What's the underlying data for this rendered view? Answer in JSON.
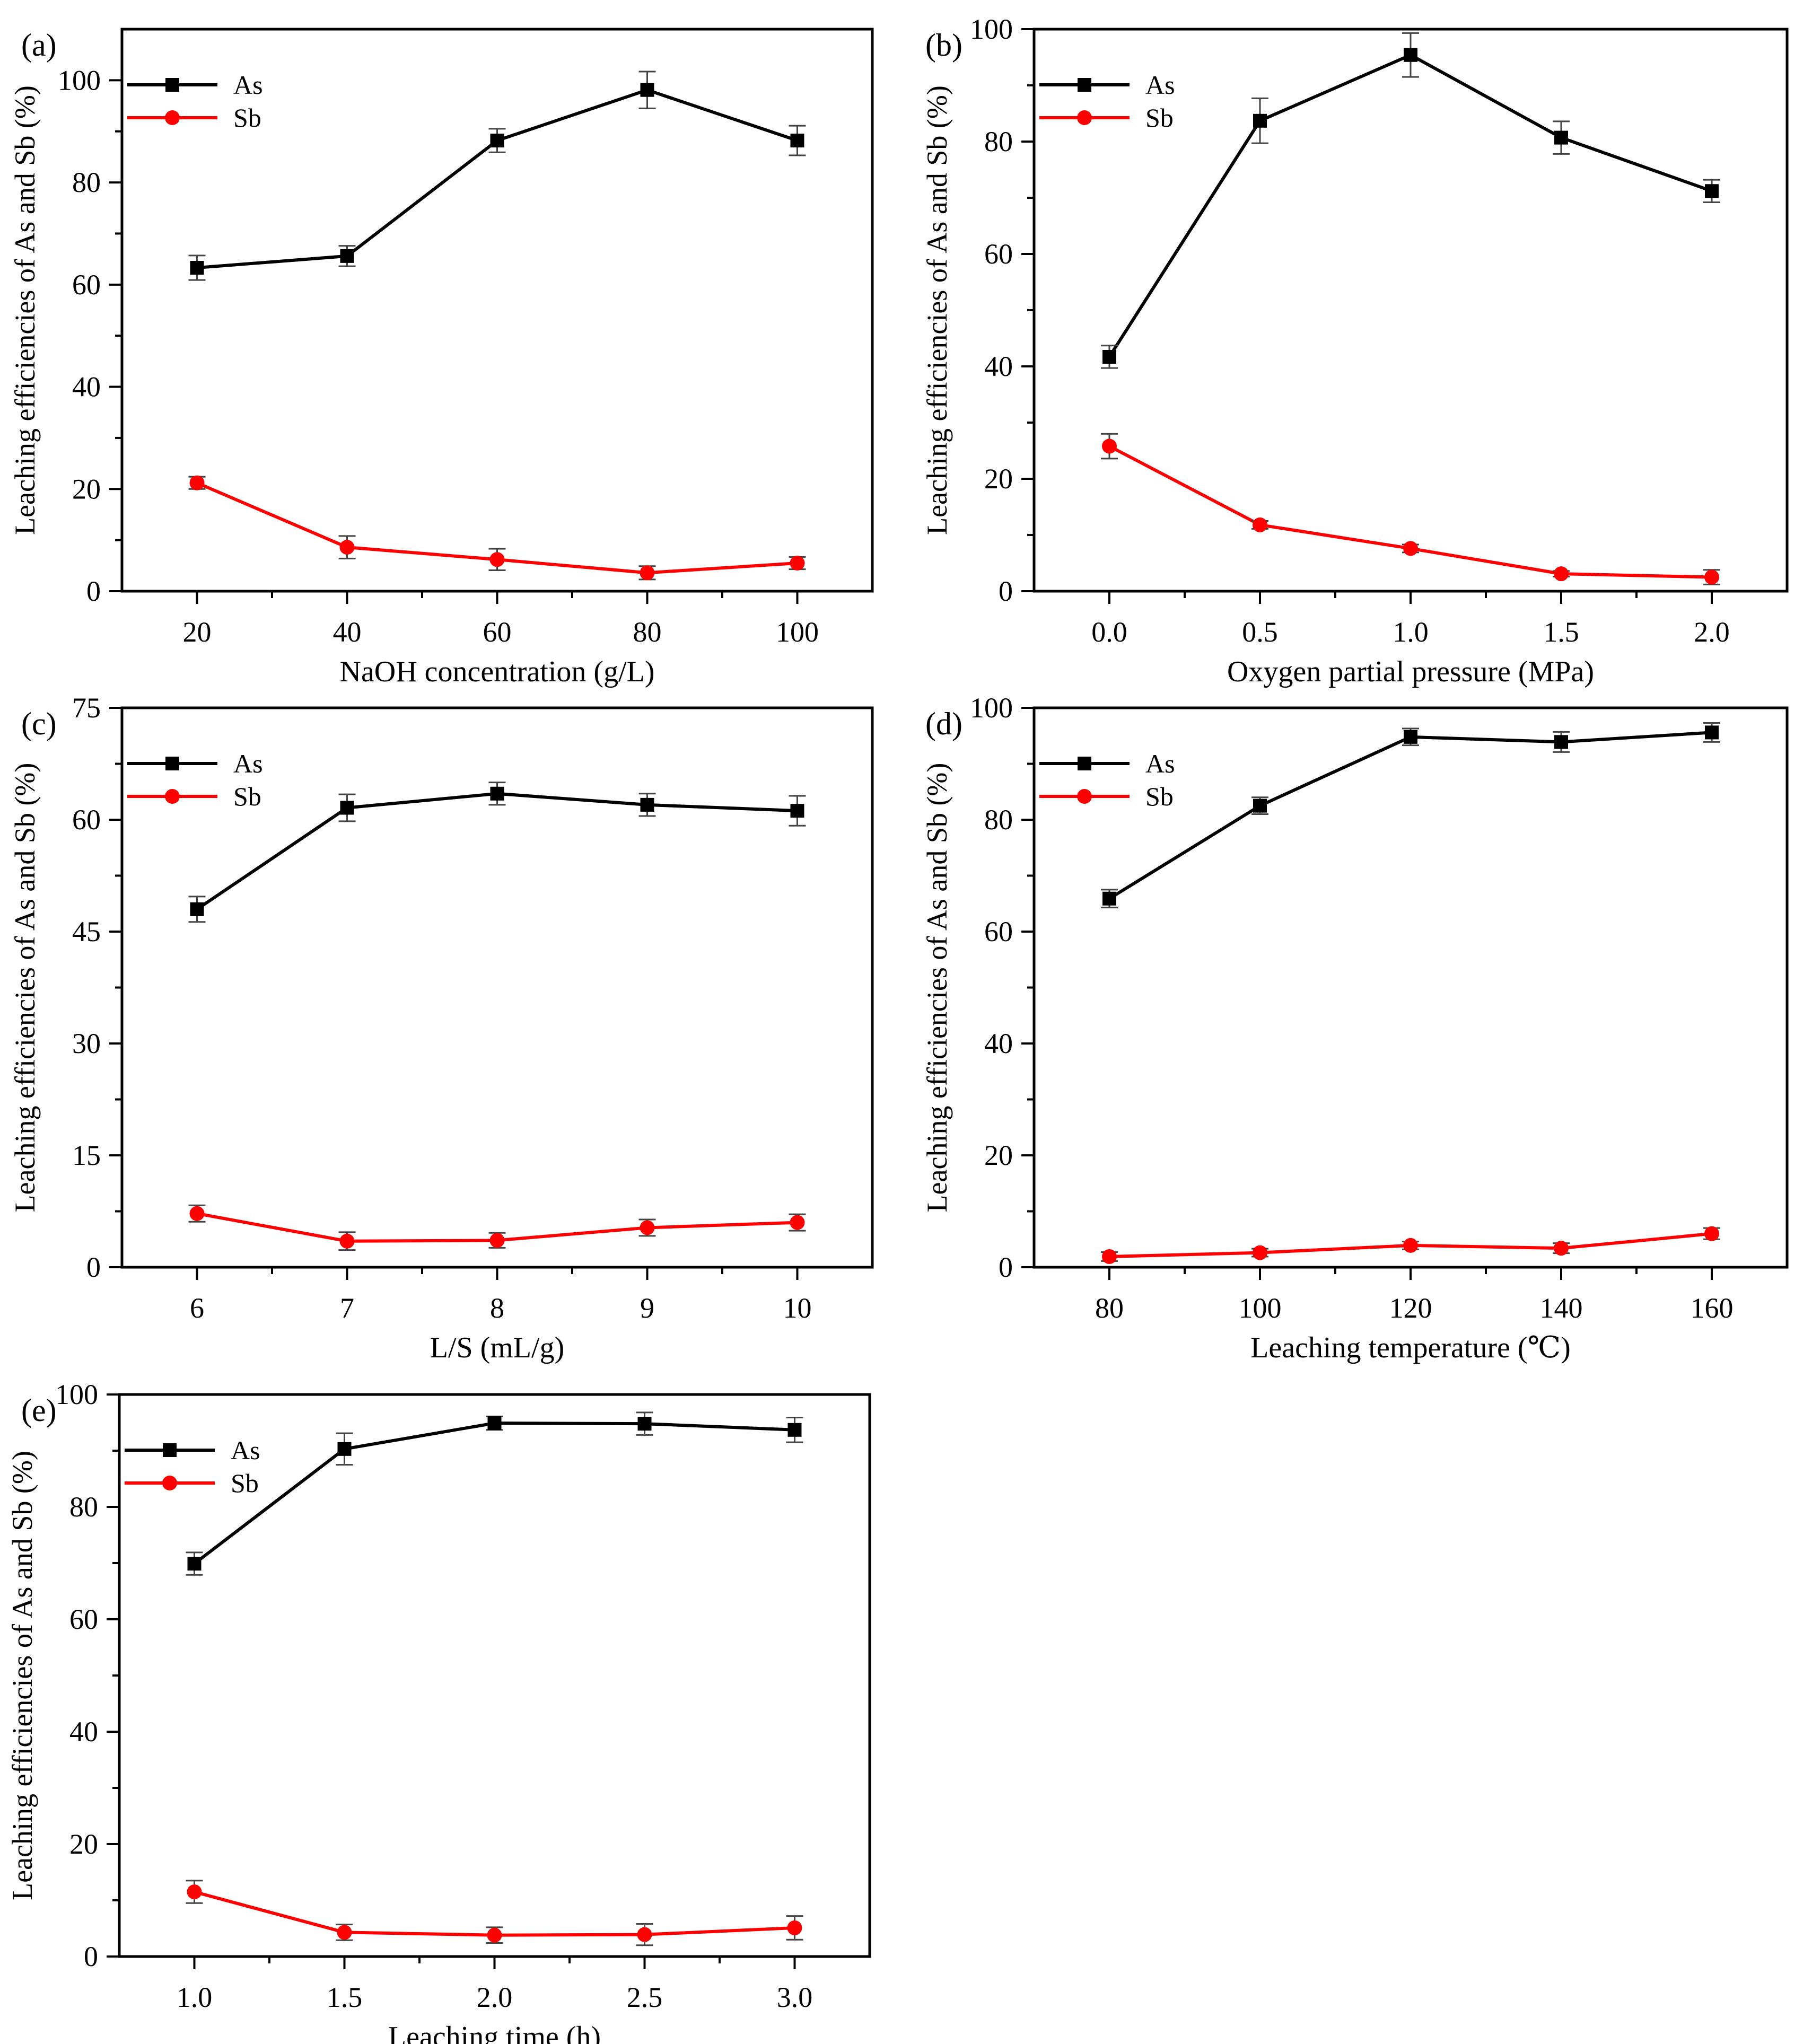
{
  "figure": {
    "series_colors": {
      "As": "#000000",
      "Sb": "#ff0000"
    },
    "panels": [
      {
        "id": "a",
        "label": "(a)"
      },
      {
        "id": "b",
        "label": "(b)"
      },
      {
        "id": "c",
        "label": "(c)"
      },
      {
        "id": "d",
        "label": "(d)"
      },
      {
        "id": "e",
        "label": "(e)"
      }
    ]
  },
  "chart_data": [
    {
      "panel": "(a)",
      "type": "line",
      "title": "",
      "xlabel": "NaOH concentration (g/L)",
      "ylabel": "Leaching efficiencies of As and Sb (%)",
      "xlim": [
        10,
        110
      ],
      "ylim": [
        0,
        110
      ],
      "xticks": [
        20,
        40,
        60,
        80,
        100
      ],
      "xtick_labels": [
        "20",
        "40",
        "60",
        "80",
        "100"
      ],
      "xminor": [
        30,
        50,
        70,
        90
      ],
      "yticks": [
        0,
        20,
        40,
        60,
        80,
        100
      ],
      "ytick_labels": [
        "0",
        "20",
        "40",
        "60",
        "80",
        "100"
      ],
      "yminor": [
        10,
        30,
        50,
        70,
        90
      ],
      "legend": "top-left",
      "x": [
        20,
        40,
        60,
        80,
        100
      ],
      "series": [
        {
          "name": "As",
          "values": [
            63.3,
            65.6,
            88.2,
            98.1,
            88.2
          ],
          "errors": [
            2.4,
            2.0,
            2.3,
            3.6,
            2.9
          ]
        },
        {
          "name": "Sb",
          "values": [
            21.2,
            8.6,
            6.2,
            3.6,
            5.5
          ],
          "errors": [
            1.2,
            2.2,
            2.1,
            1.3,
            1.2
          ]
        }
      ]
    },
    {
      "panel": "(b)",
      "type": "line",
      "title": "",
      "xlabel": "Oxygen partial pressure (MPa)",
      "ylabel": "Leaching efficiencies of As and Sb (%)",
      "xlim": [
        -0.25,
        2.25
      ],
      "ylim": [
        0,
        100
      ],
      "xticks": [
        0.0,
        0.5,
        1.0,
        1.5,
        2.0
      ],
      "xtick_labels": [
        "0.0",
        "0.5",
        "1.0",
        "1.5",
        "2.0"
      ],
      "xminor": [
        0.25,
        0.75,
        1.25,
        1.75
      ],
      "yticks": [
        0,
        20,
        40,
        60,
        80,
        100
      ],
      "ytick_labels": [
        "0",
        "20",
        "40",
        "60",
        "80",
        "100"
      ],
      "yminor": [
        10,
        30,
        50,
        70,
        90
      ],
      "legend": "top-left",
      "x": [
        0.0,
        0.5,
        1.0,
        1.5,
        2.0
      ],
      "series": [
        {
          "name": "As",
          "values": [
            41.7,
            83.7,
            95.4,
            80.7,
            71.2
          ],
          "errors": [
            2.0,
            4.0,
            3.9,
            2.9,
            2.0
          ]
        },
        {
          "name": "Sb",
          "values": [
            25.8,
            11.8,
            7.6,
            3.1,
            2.5
          ],
          "errors": [
            2.2,
            0.7,
            0.7,
            0.5,
            1.3
          ]
        }
      ]
    },
    {
      "panel": "(c)",
      "type": "line",
      "title": "",
      "xlabel": "L/S (mL/g)",
      "ylabel": "Leaching efficiencies of As and Sb (%)",
      "xlim": [
        5.5,
        10.5
      ],
      "ylim": [
        0,
        75
      ],
      "xticks": [
        6,
        7,
        8,
        9,
        10
      ],
      "xtick_labels": [
        "6",
        "7",
        "8",
        "9",
        "10"
      ],
      "xminor": [
        6.5,
        7.5,
        8.5,
        9.5
      ],
      "yticks": [
        0,
        15,
        30,
        45,
        60,
        75
      ],
      "ytick_labels": [
        "0",
        "15",
        "30",
        "45",
        "60",
        "75"
      ],
      "yminor": [
        7.5,
        22.5,
        37.5,
        52.5,
        67.5
      ],
      "legend": "top-left",
      "x": [
        6,
        7,
        8,
        9,
        10
      ],
      "series": [
        {
          "name": "As",
          "values": [
            48.0,
            61.6,
            63.5,
            62.0,
            61.2
          ],
          "errors": [
            1.7,
            1.8,
            1.5,
            1.5,
            2.0
          ]
        },
        {
          "name": "Sb",
          "values": [
            7.2,
            3.5,
            3.6,
            5.3,
            6.0
          ],
          "errors": [
            1.1,
            1.2,
            1.0,
            1.1,
            1.1
          ]
        }
      ]
    },
    {
      "panel": "(d)",
      "type": "line",
      "title": "",
      "xlabel": "Leaching temperature (℃)",
      "ylabel": "Leaching efficiencies of As and Sb (%)",
      "xlim": [
        70,
        170
      ],
      "ylim": [
        0,
        100
      ],
      "xticks": [
        80,
        100,
        120,
        140,
        160
      ],
      "xtick_labels": [
        "80",
        "100",
        "120",
        "140",
        "160"
      ],
      "xminor": [
        90,
        110,
        130,
        150
      ],
      "yticks": [
        0,
        20,
        40,
        60,
        80,
        100
      ],
      "ytick_labels": [
        "0",
        "20",
        "40",
        "60",
        "80",
        "100"
      ],
      "yminor": [
        10,
        30,
        50,
        70,
        90
      ],
      "legend": "top-left",
      "x": [
        80,
        100,
        120,
        140,
        160
      ],
      "series": [
        {
          "name": "As",
          "values": [
            65.9,
            82.5,
            94.8,
            93.9,
            95.6
          ],
          "errors": [
            1.6,
            1.5,
            1.5,
            1.8,
            1.7
          ]
        },
        {
          "name": "Sb",
          "values": [
            1.9,
            2.6,
            3.9,
            3.4,
            6.0
          ],
          "errors": [
            0.8,
            0.7,
            0.7,
            0.9,
            1.0
          ]
        }
      ]
    },
    {
      "panel": "(e)",
      "type": "line",
      "title": "",
      "xlabel": "Leaching time (h)",
      "ylabel": "Leaching efficiencies of As and Sb (%)",
      "xlim": [
        0.75,
        3.25
      ],
      "ylim": [
        0,
        100
      ],
      "xticks": [
        1.0,
        1.5,
        2.0,
        2.5,
        3.0
      ],
      "xtick_labels": [
        "1.0",
        "1.5",
        "2.0",
        "2.5",
        "3.0"
      ],
      "xminor": [
        1.25,
        1.75,
        2.25,
        2.75
      ],
      "yticks": [
        0,
        20,
        40,
        60,
        80,
        100
      ],
      "ytick_labels": [
        "0",
        "20",
        "40",
        "60",
        "80",
        "100"
      ],
      "yminor": [
        10,
        30,
        50,
        70,
        90
      ],
      "legend": "top-left",
      "x": [
        1.0,
        1.5,
        2.0,
        2.5,
        3.0
      ],
      "series": [
        {
          "name": "As",
          "values": [
            69.9,
            90.3,
            94.9,
            94.8,
            93.7
          ],
          "errors": [
            2.0,
            2.8,
            1.2,
            2.0,
            2.2
          ]
        },
        {
          "name": "Sb",
          "values": [
            11.5,
            4.3,
            3.8,
            3.9,
            5.1
          ],
          "errors": [
            2.0,
            1.4,
            1.4,
            1.9,
            2.1
          ]
        }
      ]
    }
  ]
}
